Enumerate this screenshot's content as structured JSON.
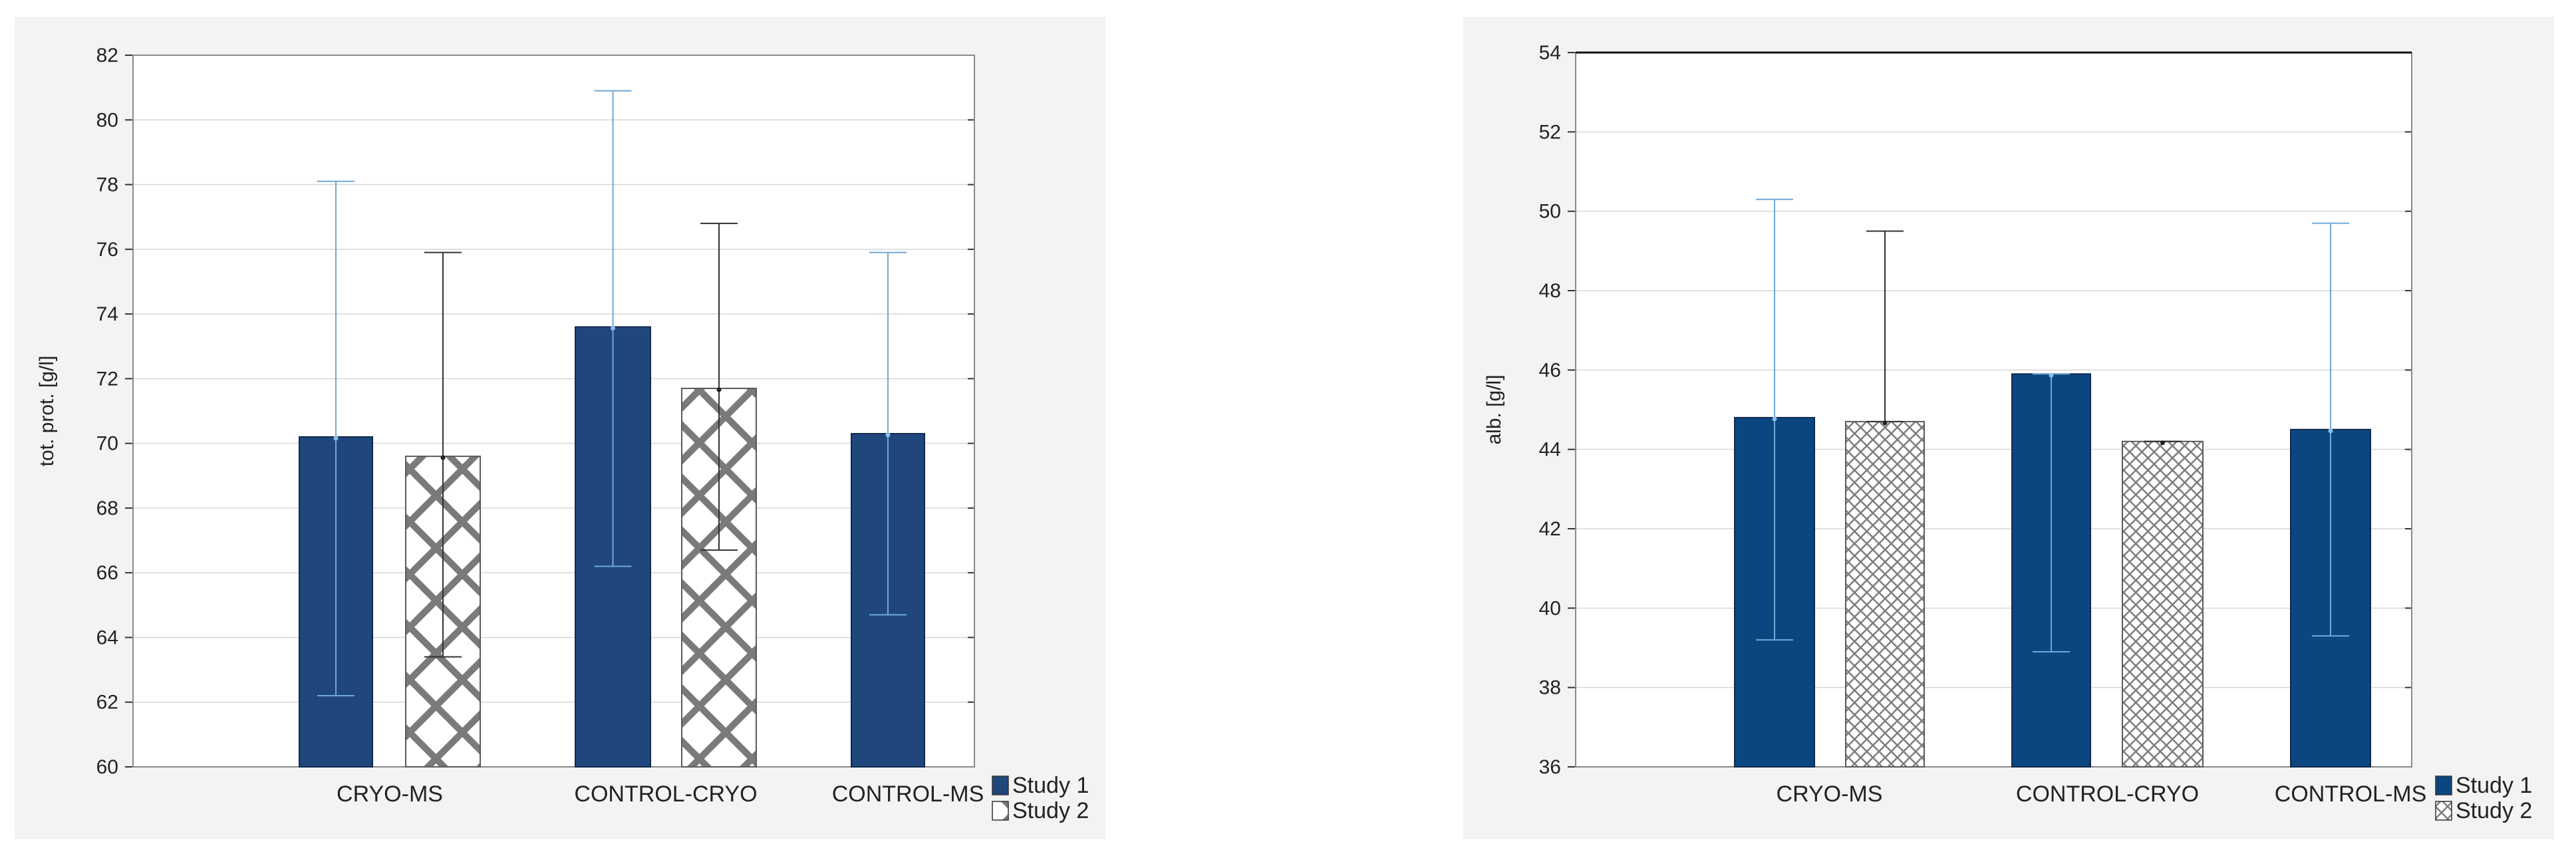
{
  "chart_data": [
    {
      "type": "bar",
      "title": "",
      "xlabel": "",
      "ylabel": "tot. prot. [g/l]",
      "ylim": [
        60,
        82
      ],
      "yticks": [
        60,
        62,
        64,
        66,
        68,
        70,
        72,
        74,
        76,
        78,
        80,
        82
      ],
      "grid": true,
      "legend": "bottom-right",
      "categories": [
        "CRYO-MS",
        "CONTROL-CRYO",
        "CONTROL-MS"
      ],
      "series": [
        {
          "name": "Study 1",
          "values": [
            70.2,
            73.6,
            70.3
          ],
          "error_low": [
            62.2,
            66.2,
            64.7
          ],
          "error_high": [
            78.1,
            80.9,
            75.9
          ],
          "color": "#1f477e",
          "pattern": "solid"
        },
        {
          "name": "Study 2",
          "values": [
            69.6,
            71.7,
            null
          ],
          "error_low": [
            63.4,
            66.7,
            null
          ],
          "error_high": [
            75.9,
            76.8,
            null
          ],
          "color": "#808080",
          "pattern": "coarse-crosshatch"
        }
      ],
      "top_border_dark": false
    },
    {
      "type": "bar",
      "title": "",
      "xlabel": "",
      "ylabel": "alb. [g/l]",
      "ylim": [
        36,
        54
      ],
      "yticks": [
        36,
        38,
        40,
        42,
        44,
        46,
        48,
        50,
        52,
        54
      ],
      "grid": true,
      "legend": "bottom-right",
      "categories": [
        "CRYO-MS",
        "CONTROL-CRYO",
        "CONTROL-MS"
      ],
      "series": [
        {
          "name": "Study 1",
          "values": [
            44.8,
            45.9,
            44.5
          ],
          "error_low": [
            39.2,
            38.9,
            39.3
          ],
          "error_high": [
            50.3,
            45.9,
            49.7
          ],
          "color": "#0b4680",
          "pattern": "solid"
        },
        {
          "name": "Study 2",
          "values": [
            44.7,
            44.2,
            null
          ],
          "error_low": [
            44.7,
            44.2,
            null
          ],
          "error_high": [
            49.5,
            44.2,
            null
          ],
          "color": "#808080",
          "pattern": "fine-crosshatch"
        }
      ],
      "top_border_dark": true
    }
  ]
}
